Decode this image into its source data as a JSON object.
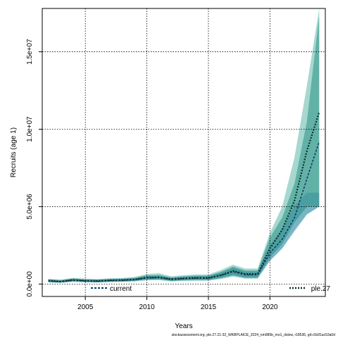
{
  "chart_data": {
    "type": "line",
    "title": "",
    "xlabel": "Years",
    "ylabel": "Recruits (age 1)",
    "xlim": [
      2001.5,
      2024.5
    ],
    "ylim": [
      -800000,
      17800000
    ],
    "x_ticks": [
      2005,
      2010,
      2015,
      2020
    ],
    "x_tick_labels": [
      "2005",
      "2010",
      "2015",
      "2020"
    ],
    "y_ticks": [
      0,
      5000000,
      10000000,
      15000000
    ],
    "y_tick_labels": [
      "0.0e+00",
      "5.0e+06",
      "1.0e+07",
      "1.5e+07"
    ],
    "grid": true,
    "legend_position": "bottom",
    "colors": {
      "current_band": "#2e7bb0",
      "current_band_alpha": 0.38,
      "ple_band_outer": "#5cb8a8",
      "ple_band_outer_alpha": 0.55,
      "ple_band_inner": "#1e8a80",
      "ple_band_inner_alpha": 0.5,
      "current_line": "#0f3a66",
      "ple_line": "#0c2e2a",
      "grid": "#000000"
    },
    "x": [
      2002,
      2003,
      2004,
      2005,
      2006,
      2007,
      2008,
      2009,
      2010,
      2011,
      2012,
      2013,
      2014,
      2015,
      2016,
      2017,
      2018,
      2019,
      2020,
      2021,
      2022,
      2023,
      2024
    ],
    "series": [
      {
        "name": "current",
        "values": [
          200000,
          150000,
          250000,
          200000,
          180000,
          220000,
          240000,
          280000,
          400000,
          420000,
          300000,
          350000,
          380000,
          380000,
          550000,
          800000,
          600000,
          600000,
          2000000,
          2900000,
          4300000,
          6800000,
          9200000
        ],
        "lower": [
          120000,
          90000,
          170000,
          130000,
          110000,
          150000,
          160000,
          200000,
          280000,
          300000,
          200000,
          240000,
          260000,
          260000,
          380000,
          560000,
          400000,
          400000,
          1500000,
          2300000,
          3400000,
          4500000,
          5000000
        ],
        "upper": [
          290000,
          230000,
          340000,
          290000,
          270000,
          310000,
          330000,
          380000,
          540000,
          570000,
          410000,
          480000,
          520000,
          520000,
          740000,
          1070000,
          810000,
          810000,
          2500000,
          3600000,
          5100000,
          5900000,
          5900000
        ]
      },
      {
        "name": "ple.27",
        "values": [
          220000,
          170000,
          270000,
          220000,
          200000,
          250000,
          260000,
          300000,
          420000,
          430000,
          320000,
          370000,
          400000,
          400000,
          580000,
          850000,
          650000,
          650000,
          2300000,
          3500000,
          5400000,
          8600000,
          11100000
        ],
        "lower": [
          140000,
          100000,
          180000,
          140000,
          120000,
          160000,
          170000,
          210000,
          290000,
          300000,
          210000,
          250000,
          270000,
          270000,
          390000,
          580000,
          420000,
          420000,
          1700000,
          2600000,
          4000000,
          5000000,
          5000000
        ],
        "upper": [
          300000,
          250000,
          360000,
          300000,
          290000,
          330000,
          350000,
          400000,
          560000,
          580000,
          430000,
          500000,
          540000,
          540000,
          780000,
          1120000,
          880000,
          880000,
          3000000,
          4300000,
          6500000,
          10500000,
          17300000
        ],
        "lower_outer": [
          100000,
          80000,
          140000,
          110000,
          100000,
          130000,
          140000,
          170000,
          240000,
          250000,
          170000,
          200000,
          220000,
          220000,
          320000,
          480000,
          350000,
          350000,
          1500000,
          2300000,
          3500000,
          4500000,
          5000000
        ],
        "upper_outer": [
          340000,
          290000,
          400000,
          350000,
          330000,
          380000,
          400000,
          460000,
          650000,
          700000,
          500000,
          580000,
          620000,
          620000,
          900000,
          1250000,
          1000000,
          1000000,
          3300000,
          5000000,
          8200000,
          12800000,
          17800000
        ]
      }
    ],
    "footer": "stockassessment.org, ple.27.21-32_WKBPLAICE_2024_nm085b_mo1_dslow, r18536, git:c9c81ac53a0d"
  }
}
